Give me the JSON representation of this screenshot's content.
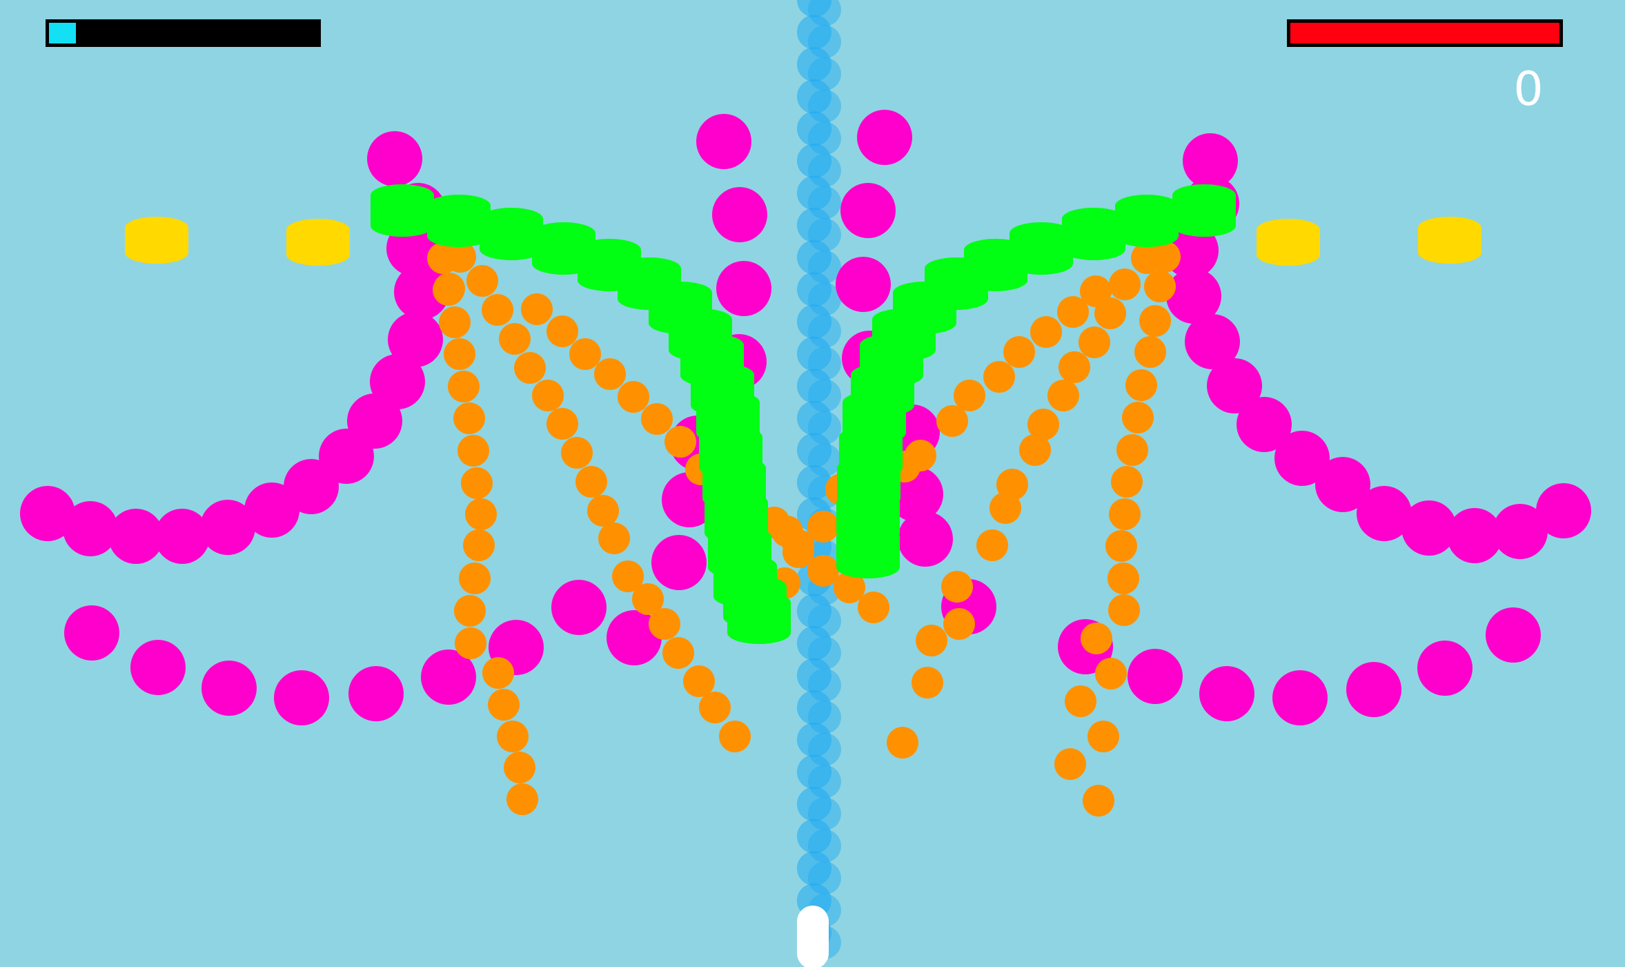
{
  "hud": {
    "score": "0",
    "player_energy_fraction": 0.1,
    "boss_health_fraction": 1.0
  },
  "colors": {
    "background": "#8fd4e2",
    "enemy_orb": "#ff00cc",
    "enemy_bullet": "#ff9100",
    "boss_segment": "#00ff12",
    "coin": "#ffd900",
    "player_bullet": "#1eaaf2",
    "player_ship": "#ffffff",
    "energy_fill": "#13e0f5",
    "health_fill": "#ff0010"
  },
  "icons": {
    "player": "player-ship",
    "pickup": "coin-pickup"
  }
}
